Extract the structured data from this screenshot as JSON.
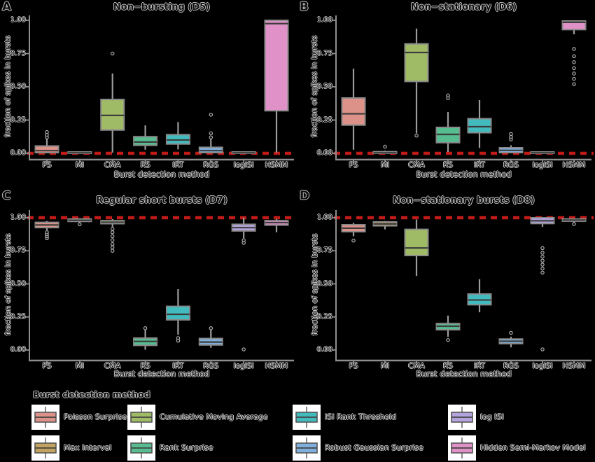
{
  "figure": {
    "background": "#000000",
    "axis_color": "#8E8E8E",
    "box_border_color": "#8A8A8A",
    "whisker_color": "#9C9C9C",
    "median_color": "#3C3C3C",
    "outlier_ring_color": "#C4C4C4"
  },
  "legend": {
    "title": "Burst detection method",
    "entries": [
      {
        "label": "Poisson Surprise",
        "color": "#DC9189"
      },
      {
        "label": "Max Interval",
        "color": "#C1A25E"
      },
      {
        "label": "Cumulative Moving Average",
        "color": "#A0BB66"
      },
      {
        "label": "Rank Surprise",
        "color": "#55BD90"
      },
      {
        "label": "ISI Rank Threshold",
        "color": "#41BBBE"
      },
      {
        "label": "Robust Gaussian Surprise",
        "color": "#7FAFDC"
      },
      {
        "label": "log ISI",
        "color": "#B4A4DE"
      },
      {
        "label": "Hidden Semi-Markov Model",
        "color": "#E092C8"
      }
    ]
  },
  "chart_data": [
    {
      "type": "boxplot",
      "panel_label": "A",
      "title": "Non−bursting (D5)",
      "xlabel": "Burst detection method",
      "ylabel": "fraction of spikes in bursts",
      "ylim": [
        0,
        1
      ],
      "yticks": [
        "0.00",
        "0.25",
        "0.50",
        "0.75",
        "1.00"
      ],
      "grid": false,
      "reference_line": {
        "value": 0.0,
        "color": "#C11B17",
        "style": "dashed"
      },
      "categories": [
        "PS",
        "MI",
        "CMA",
        "RS",
        "IRT",
        "RGS",
        "logISI",
        "HSMM"
      ],
      "boxes": [
        {
          "method": "PS",
          "color": "#DC9189",
          "whisker_low": 0.0,
          "q1": 0.005,
          "median": 0.02,
          "q3": 0.055,
          "whisker_high": 0.11,
          "outliers": [
            0.12,
            0.14,
            0.16
          ]
        },
        {
          "method": "MI",
          "color": "#C1A25E",
          "whisker_low": 0.0,
          "q1": 0.0,
          "median": 0.004,
          "q3": 0.01,
          "whisker_high": 0.015,
          "outliers": []
        },
        {
          "method": "CMA",
          "color": "#A0BB66",
          "whisker_low": 0.005,
          "q1": 0.175,
          "median": 0.285,
          "q3": 0.405,
          "whisker_high": 0.6,
          "outliers": [
            0.75
          ]
        },
        {
          "method": "RS",
          "color": "#55BD90",
          "whisker_low": 0.027,
          "q1": 0.06,
          "median": 0.085,
          "q3": 0.125,
          "whisker_high": 0.21,
          "outliers": []
        },
        {
          "method": "IRT",
          "color": "#41BBBE",
          "whisker_low": 0.03,
          "q1": 0.07,
          "median": 0.1,
          "q3": 0.14,
          "whisker_high": 0.235,
          "outliers": []
        },
        {
          "method": "RGS",
          "color": "#7FAFDC",
          "whisker_low": 0.0,
          "q1": 0.005,
          "median": 0.02,
          "q3": 0.045,
          "whisker_high": 0.115,
          "outliers": [
            0.12,
            0.15,
            0.29
          ]
        },
        {
          "method": "logISI",
          "color": "#B4A4DE",
          "whisker_low": 0.0,
          "q1": 0.0,
          "median": 0.004,
          "q3": 0.01,
          "whisker_high": 0.015,
          "outliers": []
        },
        {
          "method": "HSMM",
          "color": "#E092C8",
          "whisker_low": 0.005,
          "q1": 0.32,
          "median": 0.975,
          "q3": 1.0,
          "whisker_high": 1.0,
          "outliers": []
        }
      ]
    },
    {
      "type": "boxplot",
      "panel_label": "B",
      "title": "Non−stationary (D6)",
      "xlabel": "Burst detection method",
      "ylabel": "fraction of spikes in bursts",
      "ylim": [
        0,
        1
      ],
      "yticks": [
        "0.00",
        "0.25",
        "0.50",
        "0.75",
        "1.00"
      ],
      "grid": false,
      "reference_line": {
        "value": 0.0,
        "color": "#C11B17",
        "style": "dashed"
      },
      "categories": [
        "PS",
        "MI",
        "CMA",
        "RS",
        "IRT",
        "RGS",
        "logISI",
        "HSMM"
      ],
      "boxes": [
        {
          "method": "PS",
          "color": "#DC9189",
          "whisker_low": 0.027,
          "q1": 0.212,
          "median": 0.297,
          "q3": 0.416,
          "whisker_high": 0.637,
          "outliers": []
        },
        {
          "method": "MI",
          "color": "#C1A25E",
          "whisker_low": 0.0,
          "q1": 0.0,
          "median": 0.004,
          "q3": 0.012,
          "whisker_high": 0.02,
          "outliers": [
            0.05
          ]
        },
        {
          "method": "CMA",
          "color": "#A0BB66",
          "whisker_low": 0.15,
          "q1": 0.54,
          "median": 0.758,
          "q3": 0.823,
          "whisker_high": 0.938,
          "outliers": [
            0.133
          ]
        },
        {
          "method": "RS",
          "color": "#55BD90",
          "whisker_low": 0.01,
          "q1": 0.08,
          "median": 0.142,
          "q3": 0.195,
          "whisker_high": 0.31,
          "outliers": [
            0.415,
            0.435
          ]
        },
        {
          "method": "IRT",
          "color": "#41BBBE",
          "whisker_low": 0.04,
          "q1": 0.155,
          "median": 0.2,
          "q3": 0.26,
          "whisker_high": 0.4,
          "outliers": []
        },
        {
          "method": "RGS",
          "color": "#7FAFDC",
          "whisker_low": 0.0,
          "q1": 0.005,
          "median": 0.022,
          "q3": 0.042,
          "whisker_high": 0.06,
          "outliers": [
            0.105,
            0.125,
            0.145
          ]
        },
        {
          "method": "logISI",
          "color": "#B4A4DE",
          "whisker_low": 0.0,
          "q1": 0.0,
          "median": 0.004,
          "q3": 0.01,
          "whisker_high": 0.015,
          "outliers": []
        },
        {
          "method": "HSMM",
          "color": "#E092C8",
          "whisker_low": 0.895,
          "q1": 0.93,
          "median": 0.985,
          "q3": 0.995,
          "whisker_high": 1.0,
          "outliers": [
            0.52,
            0.56,
            0.6,
            0.64,
            0.685,
            0.73,
            0.785
          ]
        }
      ]
    },
    {
      "type": "boxplot",
      "panel_label": "C",
      "title": "Regular short bursts (D7)",
      "xlabel": "Burst detection method",
      "ylabel": "fraction of spikes in bursts",
      "ylim": [
        0,
        1
      ],
      "yticks": [
        "0.00",
        "0.25",
        "0.50",
        "0.75",
        "1.00"
      ],
      "grid": false,
      "reference_line": {
        "value": 1.0,
        "color": "#C11B17",
        "style": "dashed"
      },
      "categories": [
        "PS",
        "MI",
        "CMA",
        "RS",
        "IRT",
        "RGS",
        "logISI",
        "HSMM"
      ],
      "boxes": [
        {
          "method": "PS",
          "color": "#DC9189",
          "whisker_low": 0.905,
          "q1": 0.925,
          "median": 0.945,
          "q3": 0.965,
          "whisker_high": 0.975,
          "outliers": [
            0.845,
            0.86,
            0.875,
            0.89
          ]
        },
        {
          "method": "MI",
          "color": "#C1A25E",
          "whisker_low": 0.962,
          "q1": 0.972,
          "median": 0.98,
          "q3": 0.99,
          "whisker_high": 0.995,
          "outliers": [
            0.95
          ]
        },
        {
          "method": "CMA",
          "color": "#A0BB66",
          "whisker_low": 0.93,
          "q1": 0.955,
          "median": 0.966,
          "q3": 0.978,
          "whisker_high": 0.99,
          "outliers": [
            0.75,
            0.775,
            0.8,
            0.83,
            0.86,
            0.89,
            0.915
          ]
        },
        {
          "method": "RS",
          "color": "#55BD90",
          "whisker_low": 0.002,
          "q1": 0.035,
          "median": 0.065,
          "q3": 0.09,
          "whisker_high": 0.155,
          "outliers": [
            0.165
          ]
        },
        {
          "method": "IRT",
          "color": "#41BBBE",
          "whisker_low": 0.115,
          "q1": 0.228,
          "median": 0.27,
          "q3": 0.33,
          "whisker_high": 0.46,
          "outliers": [
            0.07,
            0.09
          ]
        },
        {
          "method": "RGS",
          "color": "#7FAFDC",
          "whisker_low": 0.017,
          "q1": 0.038,
          "median": 0.06,
          "q3": 0.087,
          "whisker_high": 0.155,
          "outliers": [
            0.165
          ]
        },
        {
          "method": "logISI",
          "color": "#B4A4DE",
          "whisker_low": 0.845,
          "q1": 0.9,
          "median": 0.925,
          "q3": 0.95,
          "whisker_high": 1.0,
          "outliers": [
            0.81,
            0.83,
            0.005
          ]
        },
        {
          "method": "HSMM",
          "color": "#E092C8",
          "whisker_low": 0.89,
          "q1": 0.944,
          "median": 0.963,
          "q3": 0.978,
          "whisker_high": 0.99,
          "outliers": []
        }
      ]
    },
    {
      "type": "boxplot",
      "panel_label": "D",
      "title": "Non−stationary bursts (D8)",
      "xlabel": "Burst detection method",
      "ylabel": "fraction of spikes in bursts",
      "ylim": [
        0,
        1
      ],
      "yticks": [
        "0.00",
        "0.25",
        "0.50",
        "0.75",
        "1.00"
      ],
      "grid": false,
      "reference_line": {
        "value": 1.0,
        "color": "#C11B17",
        "style": "dashed"
      },
      "categories": [
        "PS",
        "MI",
        "CMA",
        "RS",
        "IRT",
        "RGS",
        "logISI",
        "HSMM"
      ],
      "boxes": [
        {
          "method": "PS",
          "color": "#DC9189",
          "whisker_low": 0.86,
          "q1": 0.894,
          "median": 0.921,
          "q3": 0.947,
          "whisker_high": 0.961,
          "outliers": [
            0.827
          ]
        },
        {
          "method": "MI",
          "color": "#C1A25E",
          "whisker_low": 0.912,
          "q1": 0.939,
          "median": 0.953,
          "q3": 0.968,
          "whisker_high": 0.975,
          "outliers": []
        },
        {
          "method": "CMA",
          "color": "#A0BB66",
          "whisker_low": 0.56,
          "q1": 0.714,
          "median": 0.771,
          "q3": 0.912,
          "whisker_high": 0.986,
          "outliers": []
        },
        {
          "method": "RS",
          "color": "#55BD90",
          "whisker_low": 0.1,
          "q1": 0.153,
          "median": 0.18,
          "q3": 0.2,
          "whisker_high": 0.26,
          "outliers": [
            0.075
          ]
        },
        {
          "method": "IRT",
          "color": "#41BBBE",
          "whisker_low": 0.285,
          "q1": 0.342,
          "median": 0.378,
          "q3": 0.423,
          "whisker_high": 0.535,
          "outliers": []
        },
        {
          "method": "RGS",
          "color": "#7FAFDC",
          "whisker_low": 0.02,
          "q1": 0.048,
          "median": 0.066,
          "q3": 0.083,
          "whisker_high": 0.1,
          "outliers": [
            0.13
          ]
        },
        {
          "method": "logISI",
          "color": "#B4A4DE",
          "whisker_low": 0.93,
          "q1": 0.956,
          "median": 0.977,
          "q3": 1.0,
          "whisker_high": 1.0,
          "outliers": [
            0.585,
            0.615,
            0.645,
            0.675,
            0.705,
            0.735,
            0.77,
            0.005
          ]
        },
        {
          "method": "HSMM",
          "color": "#E092C8",
          "whisker_low": 0.965,
          "q1": 0.974,
          "median": 0.982,
          "q3": 0.99,
          "whisker_high": 0.995,
          "outliers": [
            0.952
          ]
        }
      ]
    }
  ]
}
